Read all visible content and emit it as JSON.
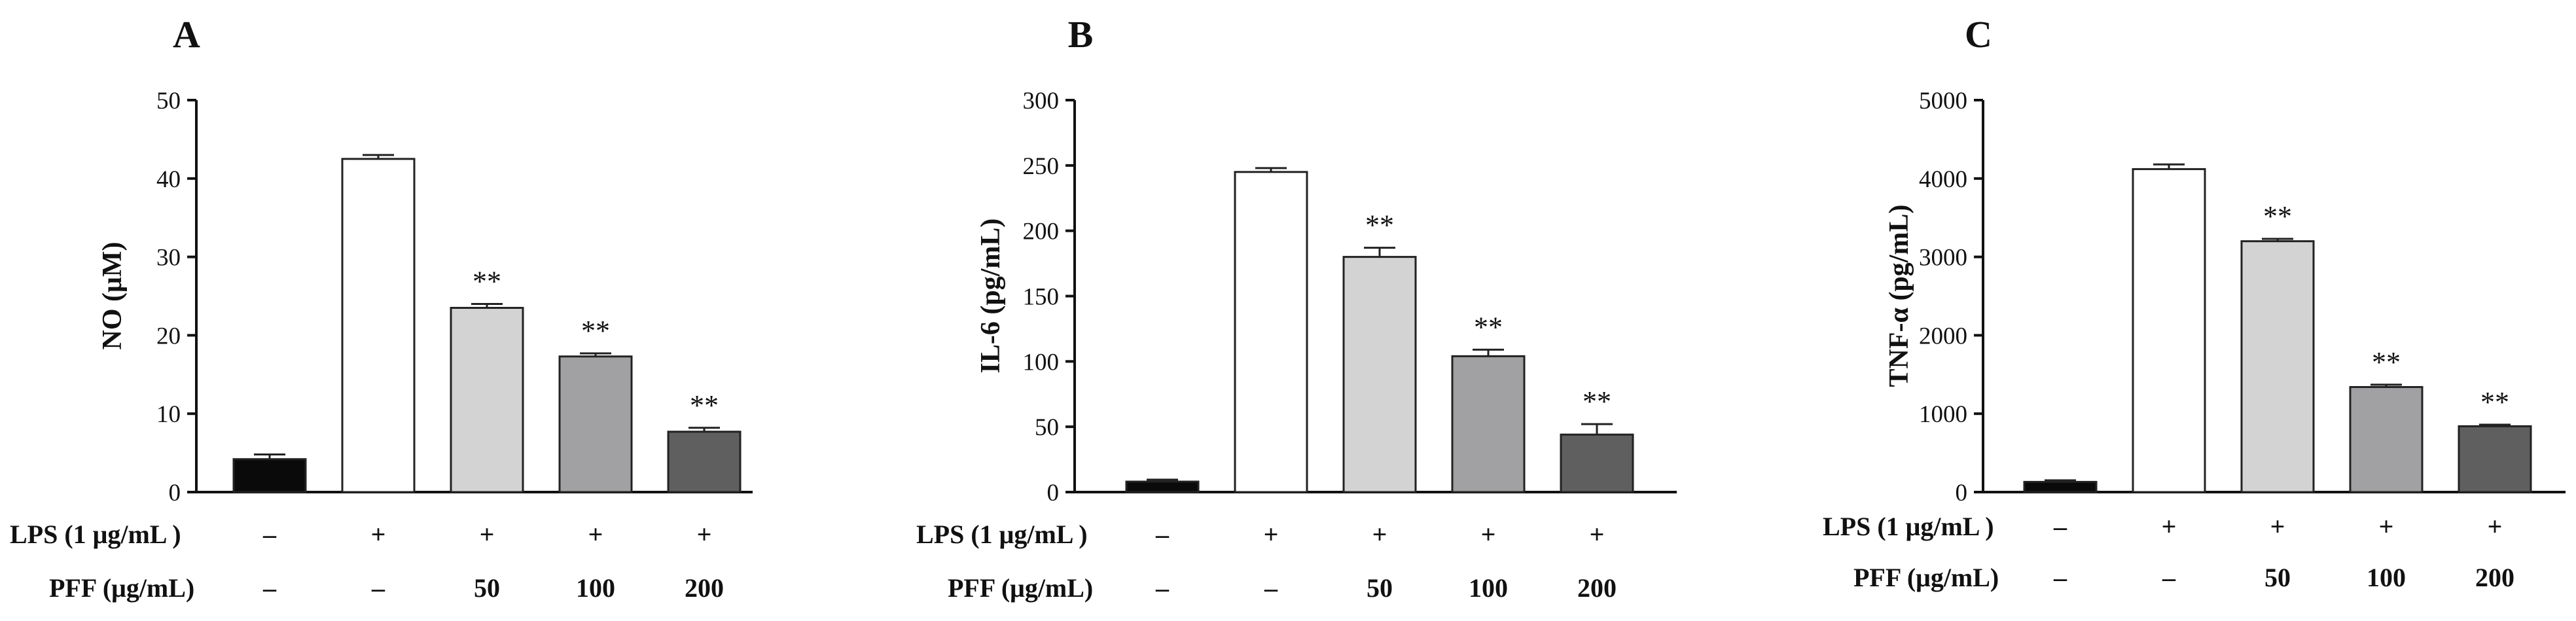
{
  "colors": {
    "axis": "#111111",
    "bar_stroke": "#222222",
    "bar_fills": [
      "#0a0a0a",
      "#ffffff",
      "#d3d3d3",
      "#a1a1a3",
      "#5f5f5f"
    ]
  },
  "row_labels": {
    "lps": "LPS (1 μg/mL )",
    "pff": "PFF (μg/mL)"
  },
  "chart_data": [
    {
      "type": "bar",
      "panel": "A",
      "ylabel": "NO (μM)",
      "ylim": [
        0,
        50
      ],
      "yticks": [
        0,
        10,
        20,
        30,
        40,
        50
      ],
      "categories": [
        "control",
        "LPS",
        "LPS+PFF 50",
        "LPS+PFF 100",
        "LPS+PFF 200"
      ],
      "values": [
        4.2,
        42.5,
        23.5,
        17.3,
        7.7
      ],
      "errors": [
        0.6,
        0.5,
        0.5,
        0.4,
        0.5
      ],
      "significance": [
        "",
        "",
        "**",
        "**",
        "**"
      ],
      "lps_row": [
        "–",
        "+",
        "+",
        "+",
        "+"
      ],
      "pff_row": [
        "–",
        "–",
        "50",
        "100",
        "200"
      ]
    },
    {
      "type": "bar",
      "panel": "B",
      "ylabel": "IL-6 (pg/mL)",
      "ylim": [
        0,
        300
      ],
      "yticks": [
        0,
        50,
        100,
        150,
        200,
        250,
        300
      ],
      "categories": [
        "control",
        "LPS",
        "LPS+PFF 50",
        "LPS+PFF 100",
        "LPS+PFF 200"
      ],
      "values": [
        8,
        245,
        180,
        104,
        44
      ],
      "errors": [
        1.5,
        3,
        7,
        5,
        8
      ],
      "significance": [
        "",
        "",
        "**",
        "**",
        "**"
      ],
      "lps_row": [
        "–",
        "+",
        "+",
        "+",
        "+"
      ],
      "pff_row": [
        "–",
        "–",
        "50",
        "100",
        "200"
      ]
    },
    {
      "type": "bar",
      "panel": "C",
      "ylabel": "TNF-α (pg/mL)",
      "ylim": [
        0,
        5000
      ],
      "yticks": [
        0,
        1000,
        2000,
        3000,
        4000,
        5000
      ],
      "categories": [
        "control",
        "LPS",
        "LPS+PFF 50",
        "LPS+PFF 100",
        "LPS+PFF 200"
      ],
      "values": [
        130,
        4120,
        3200,
        1340,
        840
      ],
      "errors": [
        20,
        60,
        30,
        30,
        20
      ],
      "significance": [
        "",
        "",
        "**",
        "**",
        "**"
      ],
      "lps_row": [
        "–",
        "+",
        "+",
        "+",
        "+"
      ],
      "pff_row": [
        "–",
        "–",
        "50",
        "100",
        "200"
      ]
    }
  ]
}
